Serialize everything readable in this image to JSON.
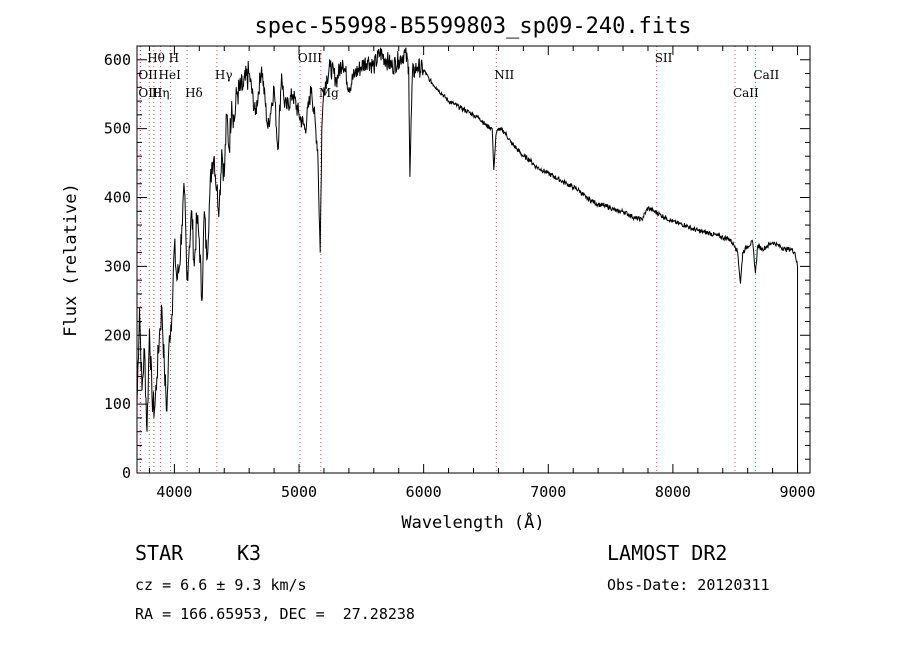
{
  "chart_data": {
    "type": "line",
    "title": "spec-55998-B5599803_sp09-240.fits",
    "xlabel": "Wavelength (Å)",
    "ylabel": "Flux (relative)",
    "xlim": [
      3700,
      9100
    ],
    "ylim": [
      0,
      620
    ],
    "xticks": [
      4000,
      5000,
      6000,
      7000,
      8000,
      9000
    ],
    "yticks": [
      0,
      100,
      200,
      300,
      400,
      500,
      600
    ],
    "grid": false,
    "line_color": "#000000",
    "marker_color": "#cc5555",
    "series": [
      {
        "x": [
          3700,
          3720,
          3740,
          3760,
          3780,
          3800,
          3820,
          3840,
          3860,
          3880,
          3900,
          3920,
          3940,
          3960,
          3980,
          4000,
          4020,
          4040,
          4060,
          4080,
          4100,
          4120,
          4140,
          4160,
          4180,
          4200,
          4220,
          4240,
          4260,
          4280,
          4300,
          4320,
          4340,
          4360,
          4380,
          4400,
          4420,
          4440,
          4460,
          4480,
          4500,
          4550,
          4600,
          4650,
          4700,
          4750,
          4800,
          4830,
          4860,
          4880,
          4900,
          4950,
          5000,
          5050,
          5100,
          5150,
          5170,
          5183,
          5200,
          5250,
          5300,
          5350,
          5400,
          5450,
          5500,
          5550,
          5600,
          5650,
          5700,
          5750,
          5800,
          5850,
          5880,
          5890,
          5896,
          5910,
          5950,
          6000,
          6050,
          6100,
          6150,
          6200,
          6250,
          6300,
          6350,
          6400,
          6450,
          6500,
          6550,
          6563,
          6580,
          6600,
          6650,
          6700,
          6750,
          6800,
          6850,
          6900,
          6950,
          7000,
          7050,
          7100,
          7150,
          7200,
          7250,
          7300,
          7350,
          7400,
          7450,
          7500,
          7550,
          7600,
          7650,
          7700,
          7750,
          7800,
          7850,
          7900,
          7950,
          8000,
          8050,
          8100,
          8150,
          8200,
          8250,
          8300,
          8350,
          8400,
          8450,
          8498,
          8520,
          8542,
          8560,
          8600,
          8640,
          8662,
          8680,
          8720,
          8760,
          8800,
          8850,
          8900,
          8950,
          8980,
          9000
        ],
        "y": [
          100,
          240,
          120,
          180,
          60,
          210,
          110,
          90,
          140,
          200,
          240,
          150,
          90,
          200,
          230,
          330,
          280,
          300,
          360,
          410,
          280,
          330,
          380,
          300,
          370,
          340,
          250,
          380,
          310,
          390,
          450,
          460,
          410,
          390,
          470,
          430,
          520,
          470,
          540,
          510,
          550,
          560,
          580,
          520,
          590,
          500,
          560,
          470,
          580,
          540,
          530,
          550,
          520,
          500,
          560,
          470,
          320,
          500,
          560,
          590,
          570,
          600,
          560,
          580,
          590,
          600,
          590,
          610,
          600,
          590,
          600,
          610,
          590,
          430,
          480,
          580,
          590,
          585,
          570,
          560,
          550,
          540,
          535,
          530,
          525,
          520,
          515,
          505,
          500,
          440,
          490,
          500,
          495,
          480,
          470,
          460,
          455,
          445,
          440,
          435,
          430,
          425,
          420,
          415,
          410,
          400,
          395,
          390,
          388,
          385,
          380,
          380,
          375,
          370,
          368,
          385,
          380,
          375,
          370,
          365,
          362,
          360,
          355,
          352,
          350,
          348,
          345,
          342,
          340,
          330,
          320,
          275,
          320,
          330,
          335,
          290,
          330,
          325,
          330,
          335,
          330,
          325,
          325,
          320,
          300
        ]
      }
    ],
    "line_markers": [
      {
        "label": "Hθ",
        "x": 3798,
        "row": 1
      },
      {
        "label": "OII",
        "x": 3727,
        "row": 2
      },
      {
        "label": "HeI",
        "x": 3889,
        "row": 2
      },
      {
        "label": "OIII",
        "x": 3727,
        "row": 3
      },
      {
        "label": "Hη",
        "x": 3835,
        "row": 3
      },
      {
        "label": "H",
        "x": 3970,
        "row": 1
      },
      {
        "label": "Hδ",
        "x": 4102,
        "row": 3
      },
      {
        "label": "Hγ",
        "x": 4341,
        "row": 2
      },
      {
        "label": "OIII",
        "x": 5007,
        "row": 1
      },
      {
        "label": "Mg",
        "x": 5175,
        "row": 3
      },
      {
        "label": "NII",
        "x": 6583,
        "row": 2
      },
      {
        "label": "SII",
        "x": 7870,
        "row": 1
      },
      {
        "label": "CaII",
        "x": 8498,
        "row": 3
      },
      {
        "label": "CaII",
        "x": 8662,
        "row": 2
      }
    ]
  },
  "info": {
    "object_class": "STAR",
    "subclass": "K3",
    "survey": "LAMOST DR2",
    "cz": "cz = 6.6 ± 9.3 km/s",
    "obs_date": "Obs-Date: 20120311",
    "coords": "RA = 166.65953, DEC =  27.28238"
  }
}
